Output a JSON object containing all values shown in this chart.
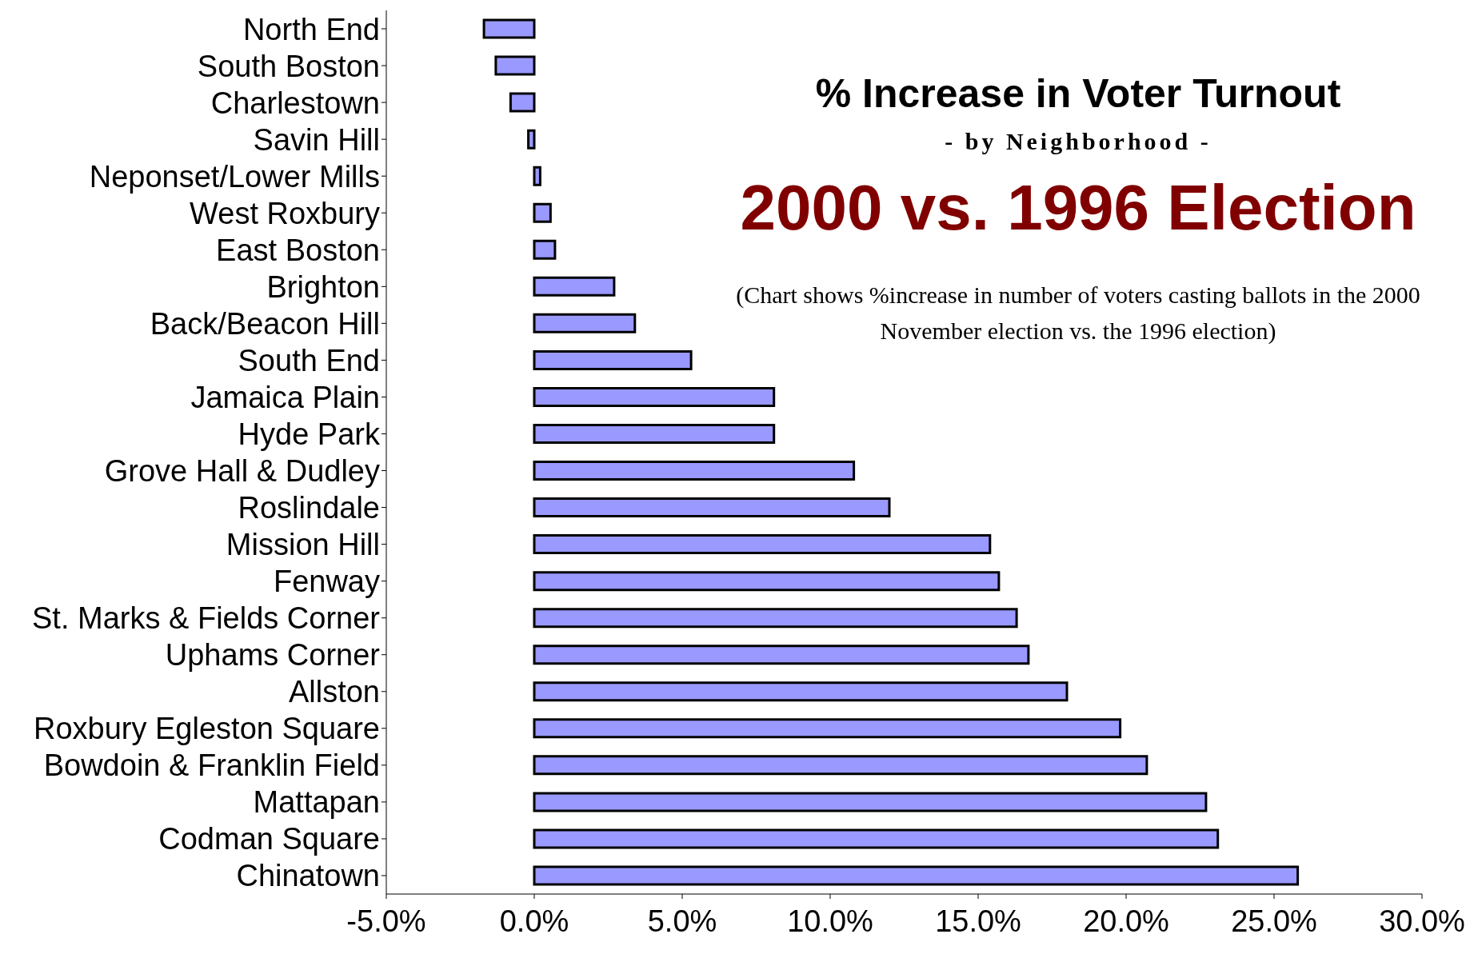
{
  "chart_data": {
    "type": "bar",
    "orientation": "horizontal",
    "title": "% Increase in Voter Turnout",
    "subtitle": "- by Neighborhood -",
    "annotations": [
      "2000 vs. 1996 Election",
      "(Chart shows %increase in number of voters casting ballots in the 2000 November election vs. the 1996 election)"
    ],
    "categories": [
      "North End",
      "South Boston",
      "Charlestown",
      "Savin Hill",
      "Neponset/Lower Mills",
      "West Roxbury",
      "East Boston",
      "Brighton",
      "Back/Beacon Hill",
      "South End",
      "Jamaica Plain",
      "Hyde Park",
      "Grove Hall & Dudley",
      "Roslindale",
      "Mission Hill",
      "Fenway",
      "St. Marks & Fields Corner",
      "Uphams Corner",
      "Allston",
      "Roxbury Egleston Square",
      "Bowdoin & Franklin Field",
      "Mattapan",
      "Codman Square",
      "Chinatown"
    ],
    "values": [
      -1.7,
      -1.3,
      -0.8,
      -0.2,
      0.2,
      0.55,
      0.7,
      2.7,
      3.4,
      5.3,
      8.1,
      8.1,
      10.8,
      12.0,
      15.4,
      15.7,
      16.3,
      16.7,
      18.0,
      19.8,
      20.7,
      22.7,
      23.1,
      25.8
    ],
    "color": "#9999ff",
    "xlim": [
      -5,
      30
    ],
    "xticks": [
      {
        "value": -5,
        "label": "-5.0%"
      },
      {
        "value": 0,
        "label": "0.0%"
      },
      {
        "value": 5,
        "label": "5.0%"
      },
      {
        "value": 10,
        "label": "10.0%"
      },
      {
        "value": 15,
        "label": "15.0%"
      },
      {
        "value": 20,
        "label": "20.0%"
      },
      {
        "value": 25,
        "label": "25.0%"
      },
      {
        "value": 30,
        "label": "30.0%"
      }
    ],
    "grid": false,
    "legend": false
  }
}
